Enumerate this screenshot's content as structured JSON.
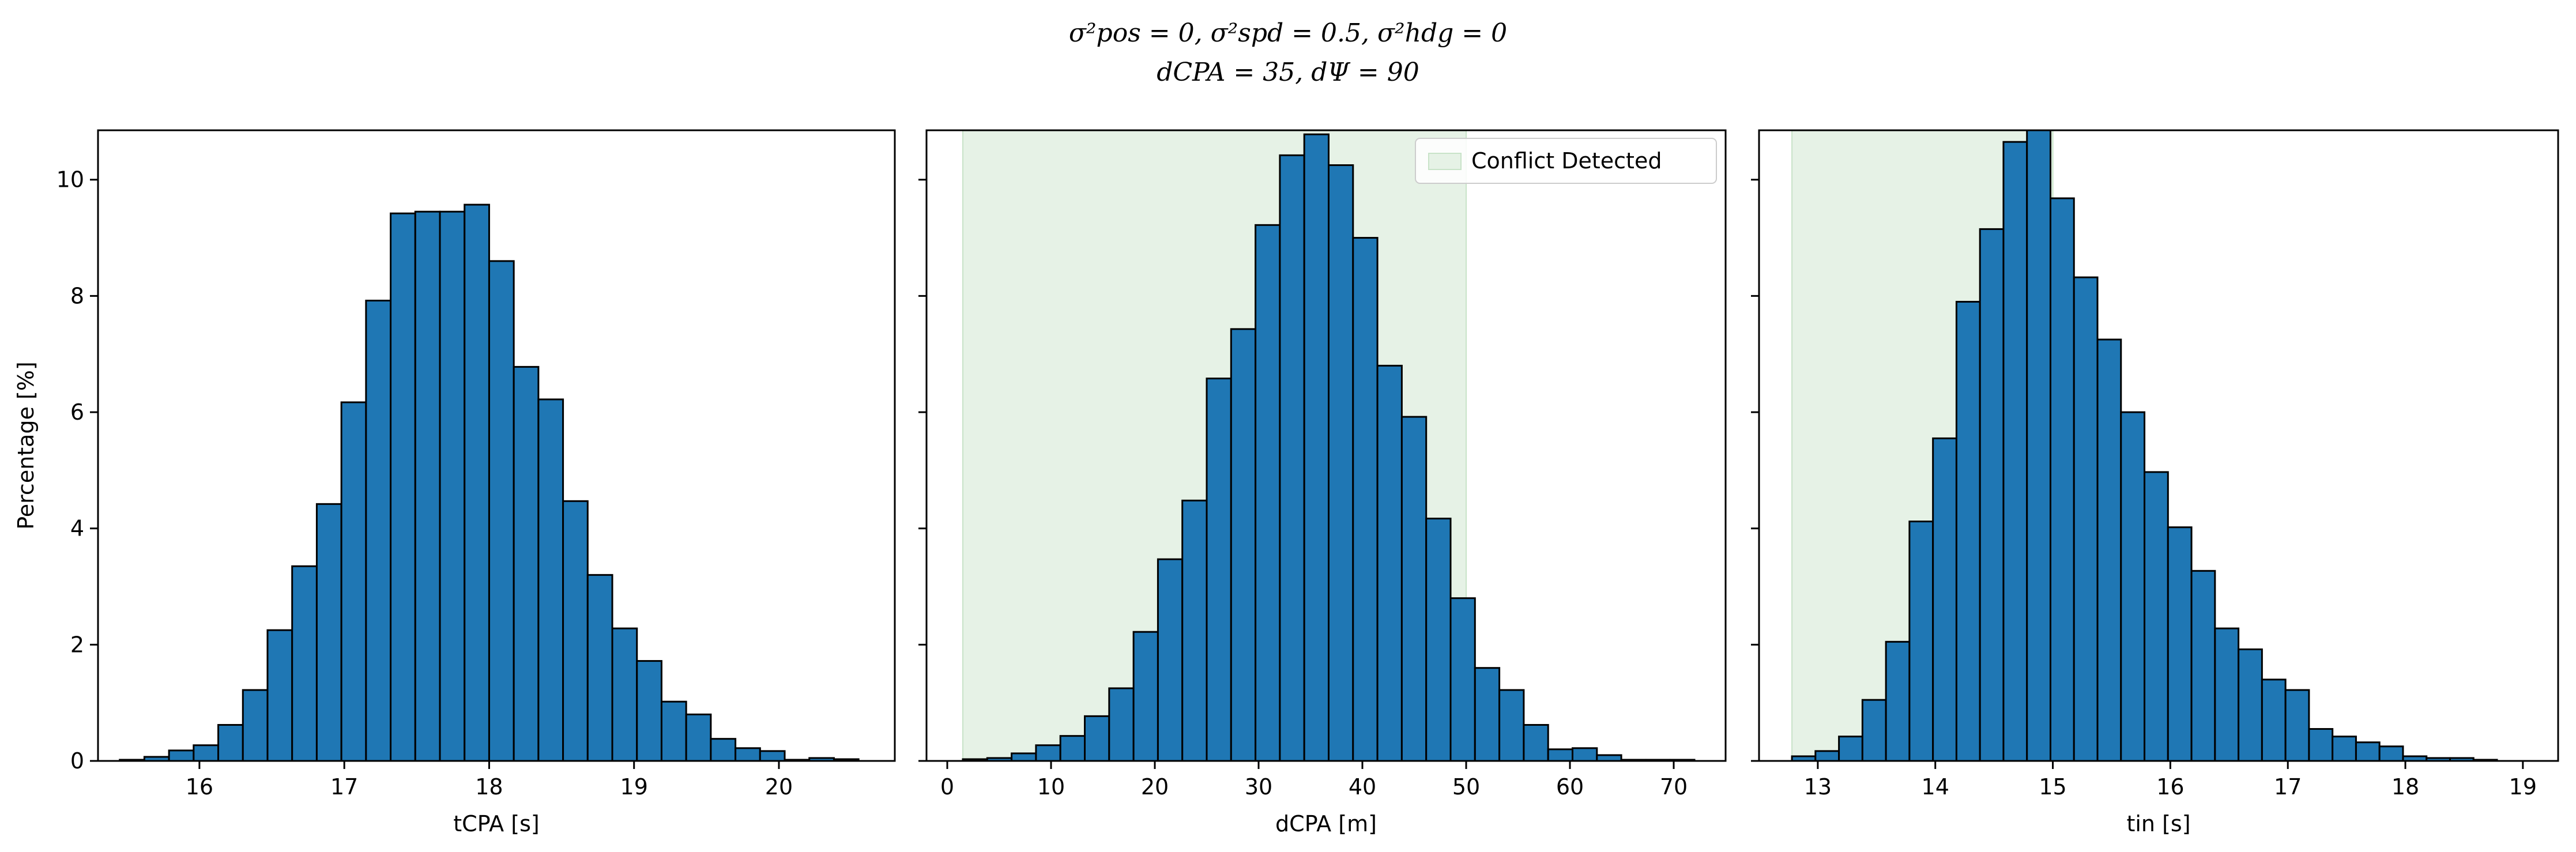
{
  "figure": {
    "title_line1": "σ²pos = 0, σ²spd = 0.5, σ²hdg = 0",
    "title_line2": "dCPA = 35, dΨ = 90"
  },
  "colors": {
    "bar_fill": "#1f77b4",
    "bar_edge": "#000000",
    "conflict_region": "#e6f2e6"
  },
  "chart_data": [
    {
      "type": "bar",
      "subtype": "histogram",
      "xlabel": "tCPA [s]",
      "ylabel": "Percentage [%]",
      "xlim": [
        15.3,
        20.8
      ],
      "ylim": [
        0,
        10.85
      ],
      "xticks": [
        16,
        17,
        18,
        19,
        20
      ],
      "yticks": [
        0,
        2,
        4,
        6,
        8,
        10
      ],
      "bin_start": 15.45,
      "bin_width": 0.17,
      "values": [
        0.02,
        0.07,
        0.18,
        0.27,
        0.62,
        1.22,
        2.25,
        3.35,
        4.42,
        6.17,
        7.92,
        9.42,
        9.45,
        9.45,
        9.57,
        8.6,
        6.78,
        6.22,
        4.47,
        3.2,
        2.28,
        1.72,
        1.02,
        0.8,
        0.38,
        0.22,
        0.17,
        0.02,
        0.05,
        0.03
      ]
    },
    {
      "type": "bar",
      "subtype": "histogram",
      "xlabel": "dCPA [m]",
      "xlim": [
        -2,
        75
      ],
      "ylim": [
        0,
        10.85
      ],
      "xticks": [
        0,
        10,
        20,
        30,
        40,
        50,
        60,
        70
      ],
      "yticks": [
        0,
        2,
        4,
        6,
        8,
        10
      ],
      "bin_start": 1.5,
      "bin_width": 2.35,
      "values": [
        0.03,
        0.05,
        0.13,
        0.27,
        0.43,
        0.77,
        1.25,
        2.22,
        3.47,
        4.48,
        6.58,
        7.43,
        9.22,
        10.42,
        10.78,
        10.25,
        9.0,
        6.8,
        5.92,
        4.17,
        2.8,
        1.6,
        1.22,
        0.62,
        0.2,
        0.22,
        0.1,
        0.02,
        0.02,
        0.02
      ],
      "shaded_region": {
        "x0": 1.5,
        "x1": 50
      },
      "legend": {
        "label": "Conflict Detected",
        "position": "upper right"
      }
    },
    {
      "type": "bar",
      "subtype": "histogram",
      "xlabel": "tin [s]",
      "xlim": [
        12.5,
        19.3
      ],
      "ylim": [
        0,
        10.85
      ],
      "xticks": [
        13,
        14,
        15,
        16,
        17,
        18,
        19
      ],
      "yticks": [
        0,
        2,
        4,
        6,
        8,
        10
      ],
      "bin_start": 12.78,
      "bin_width": 0.2,
      "values": [
        0.08,
        0.17,
        0.42,
        1.05,
        2.05,
        4.12,
        5.55,
        7.9,
        9.15,
        10.65,
        10.9,
        9.68,
        8.32,
        7.25,
        6.0,
        4.97,
        4.02,
        3.27,
        2.28,
        1.92,
        1.4,
        1.22,
        0.55,
        0.42,
        0.32,
        0.25,
        0.08,
        0.05,
        0.05,
        0.02
      ],
      "shaded_region": {
        "x0": 12.78,
        "x1": 15.0
      }
    }
  ]
}
